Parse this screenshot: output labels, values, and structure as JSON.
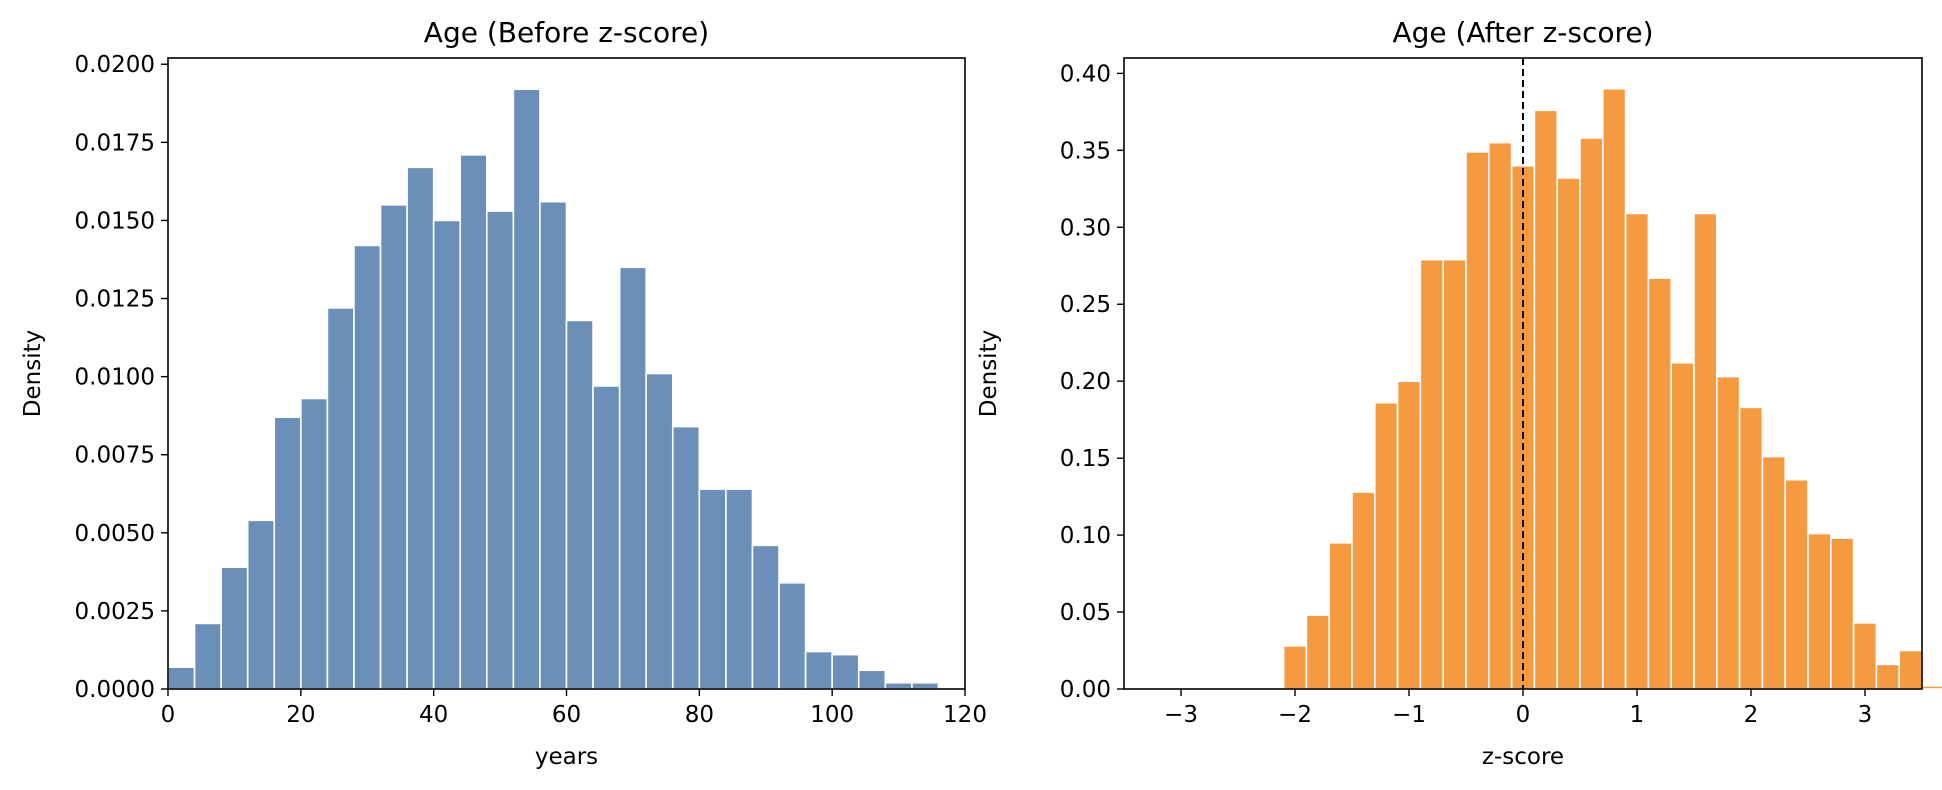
{
  "chart_data": [
    {
      "type": "bar",
      "title": "Age (Before z-score)",
      "xlabel": "years",
      "ylabel": "Density",
      "xlim": [
        0,
        120
      ],
      "ylim": [
        0,
        0.0202
      ],
      "xticks": [
        0,
        20,
        40,
        60,
        80,
        100,
        120
      ],
      "xtick_labels": [
        "0",
        "20",
        "40",
        "60",
        "80",
        "100",
        "120"
      ],
      "yticks": [
        0,
        0.0025,
        0.005,
        0.0075,
        0.01,
        0.0125,
        0.015,
        0.0175,
        0.02
      ],
      "ytick_labels": [
        "0.0000",
        "0.0025",
        "0.0050",
        "0.0075",
        "0.0100",
        "0.0125",
        "0.0150",
        "0.0175",
        "0.0200"
      ],
      "bar_color": "#6a8fb8",
      "bin_start": 0,
      "bin_width": 4,
      "values": [
        0.0007,
        0.0021,
        0.0039,
        0.0054,
        0.0087,
        0.0093,
        0.0122,
        0.0142,
        0.0155,
        0.0167,
        0.015,
        0.0171,
        0.0153,
        0.0192,
        0.0156,
        0.0118,
        0.0097,
        0.0135,
        0.0101,
        0.0084,
        0.0064,
        0.0064,
        0.0046,
        0.0034,
        0.0012,
        0.0011,
        0.0006,
        0.0002,
        0.0002
      ],
      "grid": false
    },
    {
      "type": "bar",
      "title": "Age (After z-score)",
      "xlabel": "z-score",
      "ylabel": "Density",
      "xlim": [
        -3.5,
        3.5
      ],
      "ylim": [
        0,
        0.41
      ],
      "xticks": [
        -3,
        -2,
        -1,
        0,
        1,
        2,
        3
      ],
      "xtick_labels": [
        "−3",
        "−2",
        "−1",
        "0",
        "1",
        "2",
        "3"
      ],
      "yticks": [
        0,
        0.05,
        0.1,
        0.15,
        0.2,
        0.25,
        0.3,
        0.35,
        0.4
      ],
      "ytick_labels": [
        "0.00",
        "0.05",
        "0.10",
        "0.15",
        "0.20",
        "0.25",
        "0.30",
        "0.35",
        "0.40"
      ],
      "bar_color": "#f59a3e",
      "bin_start": -3.3,
      "bin_width": 0.2,
      "values": [
        0,
        0,
        0,
        0,
        0,
        0.0,
        0.028,
        0.048,
        0.095,
        0.128,
        0.186,
        0.2,
        0.279,
        0.279,
        0.349,
        0.355,
        0.34,
        0.376,
        0.332,
        0.358,
        0.39,
        0.309,
        0.267,
        0.212,
        0.309,
        0.203,
        0.183,
        0.151,
        0.136,
        0.101,
        0.098,
        0.043,
        0.016,
        0.025,
        0.002,
        0.007,
        0,
        0
      ],
      "vline": {
        "x": 0,
        "style": "dashed"
      },
      "grid": false
    }
  ]
}
